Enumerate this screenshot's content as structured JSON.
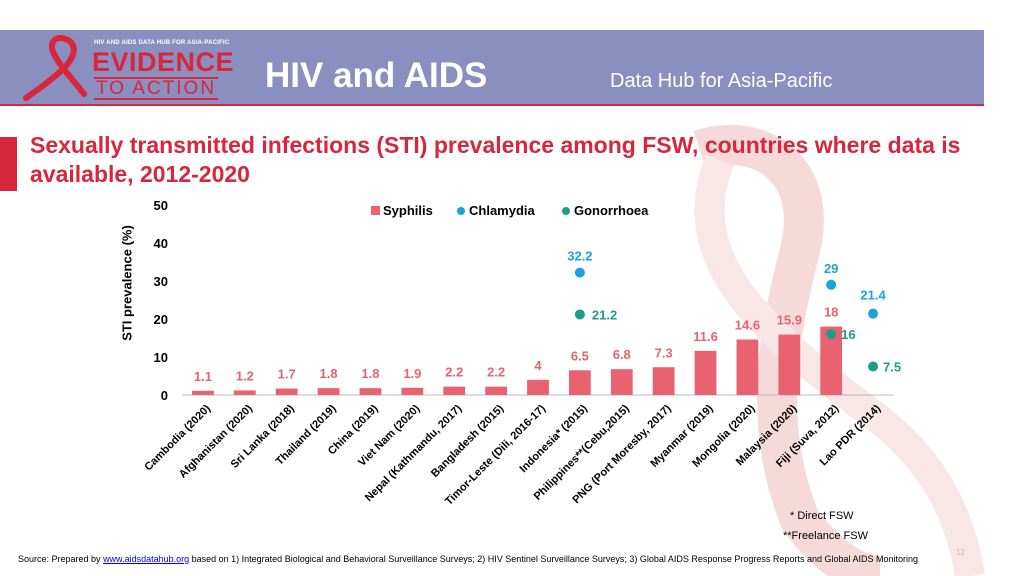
{
  "header": {
    "logo_tagline": "HIV AND AIDS DATA HUB FOR ASIA-PACIFIC",
    "logo_line1": "EVIDENCE",
    "logo_line2": "TO ACTION",
    "title": "HIV and AIDS",
    "subtitle": "Data Hub for Asia-Pacific"
  },
  "slide_title": "Sexually transmitted infections (STI) prevalence among FSW, countries where data is available, 2012-2020",
  "chart_data": {
    "type": "bar",
    "title": "Sexually transmitted infections (STI) prevalence among FSW, countries where data is available, 2012-2020",
    "ylabel": "STI prevalence (%)",
    "xlabel": "",
    "ylim": [
      0,
      50
    ],
    "yticks": [
      0,
      10,
      20,
      30,
      40,
      50
    ],
    "legend_position": "top",
    "categories": [
      "Cambodia (2020)",
      "Afghanistan (2020)",
      "Sri Lanka (2018)",
      "Thailand (2019)",
      "China (2019)",
      "Viet Nam (2020)",
      "Nepal (Kathmandu, 2017)",
      "Bangladesh (2015)",
      "Timor-Leste (Dili, 2016-17)",
      "Indonesia* (2015)",
      "Philippines**(Cebu,2015)",
      "PNG (Port Moresby, 2017)",
      "Myanmar (2019)",
      "Mongolia (2020)",
      "Malaysia (2020)",
      "Fiji (Suva, 2012)",
      "Lao PDR (2014)"
    ],
    "series": [
      {
        "name": "Syphilis",
        "type": "bar",
        "color": "#e8636f",
        "label_color": "#e8636f",
        "values": [
          1.1,
          1.2,
          1.7,
          1.8,
          1.8,
          1.9,
          2.2,
          2.2,
          4,
          6.5,
          6.8,
          7.3,
          11.6,
          14.6,
          15.9,
          18,
          null
        ],
        "labels": [
          "1.1",
          "1.2",
          "1.7",
          "1.8",
          "1.8",
          "1.9",
          "2.2",
          "2.2",
          "4",
          "6.5",
          "6.8",
          "7.3",
          "11.6",
          "14.6",
          "15.9",
          "18",
          ""
        ]
      },
      {
        "name": "Chlamydia",
        "type": "point",
        "color": "#1aa3dc",
        "label_color": "#1aa3dc",
        "values": [
          null,
          null,
          null,
          null,
          null,
          null,
          null,
          null,
          null,
          32.2,
          null,
          null,
          null,
          null,
          null,
          29,
          21.4
        ],
        "labels": [
          "",
          "",
          "",
          "",
          "",
          "",
          "",
          "",
          "",
          "32.2",
          "",
          "",
          "",
          "",
          "",
          "29",
          "21.4"
        ]
      },
      {
        "name": "Gonorrhoea",
        "type": "point",
        "color": "#1a9e86",
        "label_color": "#1a9e86",
        "values": [
          null,
          null,
          null,
          null,
          null,
          null,
          null,
          null,
          null,
          21.2,
          null,
          null,
          null,
          null,
          null,
          16,
          7.5
        ],
        "labels": [
          "",
          "",
          "",
          "",
          "",
          "",
          "",
          "",
          "",
          "21.2",
          "",
          "",
          "",
          "",
          "",
          "16",
          "7.5"
        ]
      }
    ]
  },
  "notes": {
    "direct": "* Direct FSW",
    "freelance": "**Freelance FSW"
  },
  "source": {
    "prefix": "Source: Prepared by ",
    "link": "www.aidsdatahub.org",
    "suffix": " based on 1) Integrated Biological and Behavioral Surveillance Surveys; 2) HIV Sentinel Surveillance Surveys; 3) Global AIDS Response Progress Reports and Global AIDS Monitoring"
  },
  "page_number": "12",
  "colors": {
    "header_bg": "#8b8fbf",
    "brand_red": "#d8263c"
  }
}
